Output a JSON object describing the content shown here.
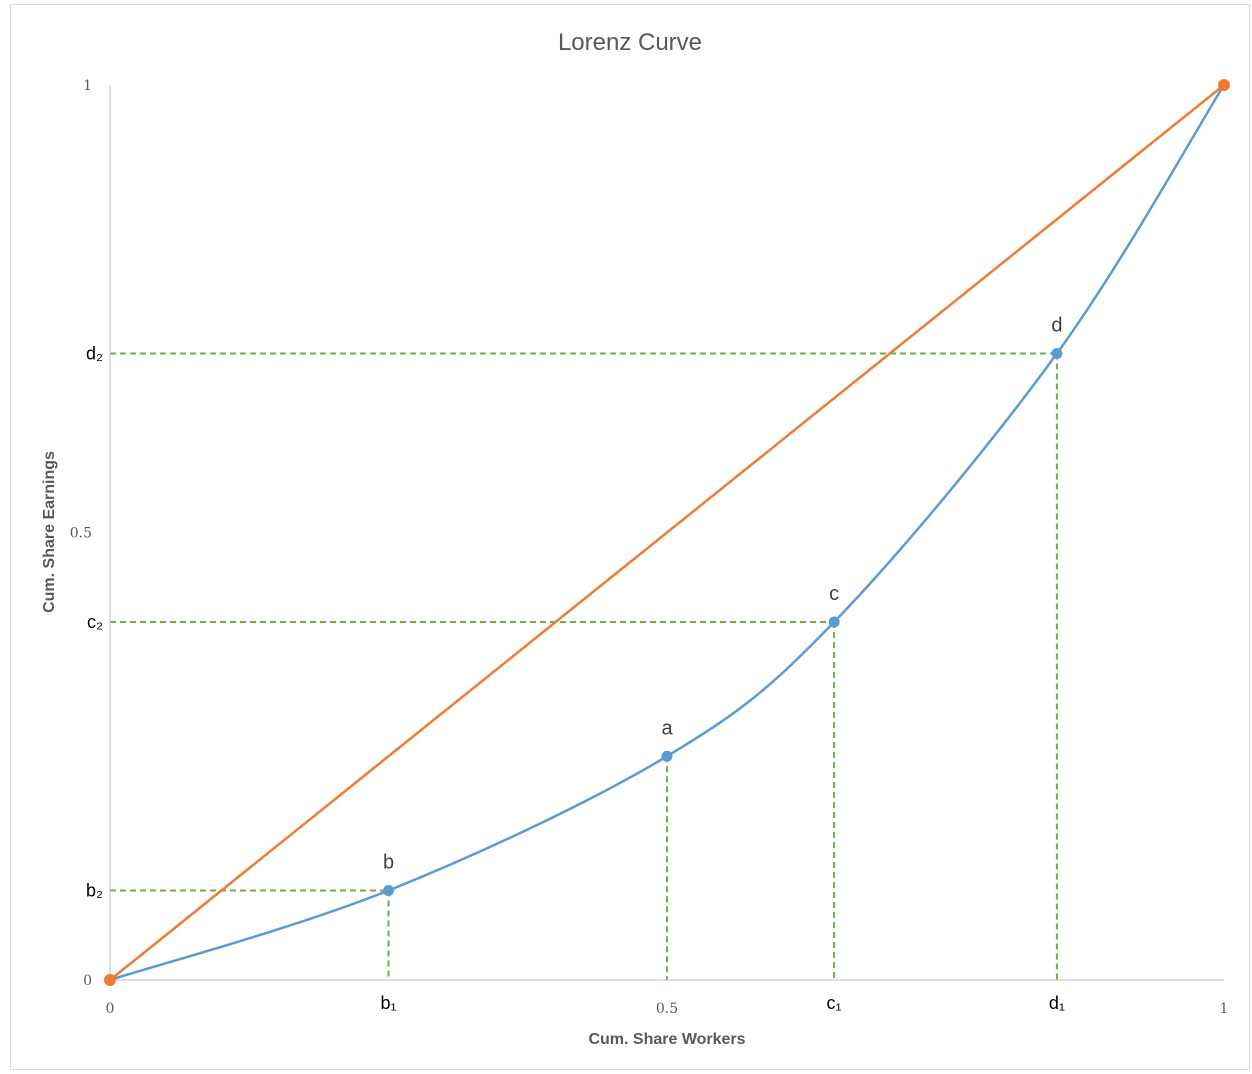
{
  "colors": {
    "lorenz": "#5b9bd5",
    "equality": "#ed7d31",
    "guides": "#70ad47",
    "axis": "#bfbfbf"
  },
  "chart_data": {
    "type": "line",
    "title": "Lorenz Curve",
    "xlabel": "Cum. Share Workers",
    "ylabel": "Cum. Share Earnings",
    "xlim": [
      0,
      1
    ],
    "ylim": [
      0,
      1
    ],
    "grid": false,
    "legend": "none",
    "x_ticks": [
      {
        "value": 0,
        "label": "0"
      },
      {
        "value": 0.5,
        "label": "0.5"
      },
      {
        "value": 1,
        "label": "1"
      }
    ],
    "y_ticks": [
      {
        "value": 0,
        "label": "0"
      },
      {
        "value": 0.5,
        "label": "0.5"
      },
      {
        "value": 1,
        "label": "1"
      }
    ],
    "series": [
      {
        "color": "#ed7d31",
        "points": [
          [
            0,
            0
          ],
          [
            1,
            1
          ]
        ]
      },
      {
        "color": "#5b9bd5",
        "points": [
          [
            0,
            0
          ],
          [
            0.25,
            0.1
          ],
          [
            0.5,
            0.25
          ],
          [
            0.65,
            0.4
          ],
          [
            0.85,
            0.7
          ],
          [
            1,
            1
          ]
        ],
        "markers": [
          [
            0.25,
            0.1
          ],
          [
            0.5,
            0.25
          ],
          [
            0.65,
            0.4
          ],
          [
            0.85,
            0.7
          ]
        ]
      }
    ],
    "annotations": [
      {
        "label": "b",
        "x": 0.25,
        "y": 0.1
      },
      {
        "label": "a",
        "x": 0.5,
        "y": 0.25
      },
      {
        "label": "c",
        "x": 0.65,
        "y": 0.4
      },
      {
        "label": "d",
        "x": 0.85,
        "y": 0.7
      }
    ],
    "reference_lines": [
      {
        "x": 0.25,
        "y": 0.1,
        "x_label": "b₁",
        "y_label": "b₂"
      },
      {
        "x": 0.5,
        "y": 0.25,
        "x_label": "",
        "y_label": ""
      },
      {
        "x": 0.65,
        "y": 0.4,
        "x_label": "c₁",
        "y_label": "c₂"
      },
      {
        "x": 0.85,
        "y": 0.7,
        "x_label": "d₁",
        "y_label": "d₂"
      }
    ]
  }
}
